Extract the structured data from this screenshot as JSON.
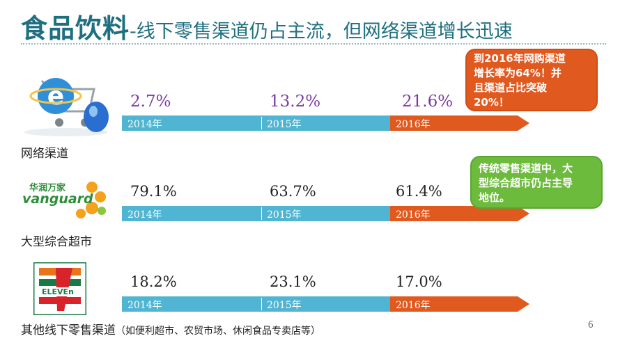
{
  "slide": {
    "title_main": "食品饮料",
    "title_sub": "-线下零售渠道仍占主流，但网络渠道增长迅速",
    "page_number": "6"
  },
  "colors": {
    "title": "#1f6f80",
    "bar_blue": "#4fb5d3",
    "bar_orange": "#e0591f",
    "callout_orange": "#e0591f",
    "callout_green": "#6dbb3d",
    "online_pct": "#7a3ba0"
  },
  "channels": [
    {
      "label": "网络渠道",
      "logo": "internet-shopping-icon",
      "values": [
        "2.7%",
        "13.2%",
        "21.6%"
      ],
      "years": [
        "2014年",
        "2015年",
        "2016年"
      ]
    },
    {
      "label": "大型综合超市",
      "logo": "vanguard-logo",
      "logo_text_cn": "华润万家",
      "logo_text_en": "vanguard",
      "values": [
        "79.1%",
        "63.7%",
        "61.4%"
      ],
      "years": [
        "2014年",
        "2015年",
        "2016年"
      ]
    },
    {
      "label": "其他线下零售渠道",
      "label_note": "（如便利超市、农贸市场、休闲食品专卖店等）",
      "logo": "seven-eleven-logo",
      "logo_text": "ELEVEn",
      "values": [
        "18.2%",
        "23.1%",
        "17.0%"
      ],
      "years": [
        "2014年",
        "2015年",
        "2016年"
      ]
    }
  ],
  "callouts": {
    "online": [
      "到2016年网购渠道",
      "增长率为64%！并",
      "且渠道占比突破",
      "20%！"
    ],
    "offline": [
      "传统零售渠道中，大",
      "型综合超市仍占主导",
      "地位。"
    ]
  }
}
